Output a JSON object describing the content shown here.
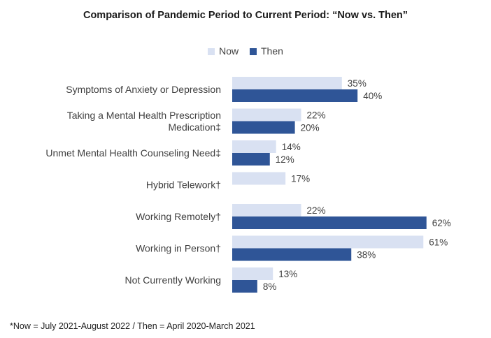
{
  "chart_data": {
    "type": "bar",
    "orientation": "horizontal",
    "title": "Comparison of Pandemic Period to Current Period: “Now vs. Then”",
    "categories": [
      [
        "Symptoms of Anxiety or Depression"
      ],
      [
        "Taking a Mental Health Prescription",
        "Medication‡"
      ],
      [
        "Unmet Mental Health Counseling Need‡"
      ],
      [
        "Hybrid Telework†"
      ],
      [
        "Working Remotely†"
      ],
      [
        "Working in Person†"
      ],
      [
        "Not Currently Working"
      ]
    ],
    "series": [
      {
        "name": "Now",
        "color": "#d9e1f2",
        "values": [
          35,
          22,
          14,
          17,
          22,
          61,
          13
        ],
        "labels": [
          "35%",
          "22%",
          "14%",
          "17%",
          "22%",
          "61%",
          "13%"
        ]
      },
      {
        "name": "Then",
        "color": "#2f5597",
        "values": [
          40,
          20,
          12,
          null,
          62,
          38,
          8
        ],
        "labels": [
          "40%",
          "20%",
          "12%",
          null,
          "62%",
          "38%",
          "8%"
        ]
      }
    ],
    "xlim": [
      0,
      100
    ],
    "xlabel": "",
    "ylabel": "",
    "legend_position": "top-center",
    "grid": false,
    "footnote": "*Now = July 2021-August 2022 / Then = April 2020-March 2021"
  }
}
